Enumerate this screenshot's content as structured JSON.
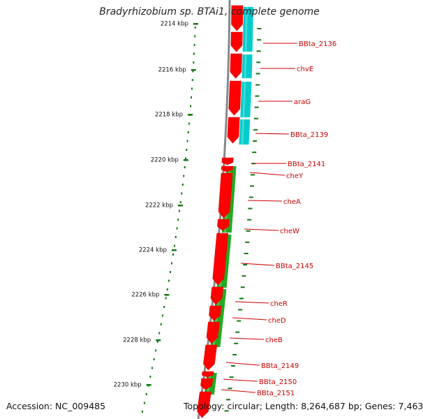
{
  "title": "Bradyrhizobium sp. BTAi1, complete genome",
  "footer": {
    "accession": "Accession: NC_009485",
    "info": "Topology: circular; Length: 8,264,687 bp; Genes: 7,463"
  },
  "ruler": {
    "unit": "kbp",
    "ticks": [
      "2214 kbp",
      "2216 kbp",
      "2218 kbp",
      "2220 kbp",
      "2222 kbp",
      "2224 kbp",
      "2226 kbp",
      "2228 kbp",
      "2230 kbp"
    ]
  },
  "genes": [
    {
      "label": "BBta_2136",
      "strand": "forward-strand"
    },
    {
      "label": "chvE",
      "strand": "forward-strand"
    },
    {
      "label": "araG",
      "strand": "forward-strand"
    },
    {
      "label": "BBta_2139",
      "strand": "forward-strand"
    },
    {
      "label": "BBta_2141",
      "strand": "forward-strand"
    },
    {
      "label": "cheY",
      "strand": "forward-strand"
    },
    {
      "label": "cheA",
      "strand": "forward-strand"
    },
    {
      "label": "cheW",
      "strand": "forward-strand"
    },
    {
      "label": "BBta_2145",
      "strand": "forward-strand"
    },
    {
      "label": "cheR",
      "strand": "forward-strand"
    },
    {
      "label": "cheD",
      "strand": "forward-strand"
    },
    {
      "label": "cheB",
      "strand": "forward-strand"
    },
    {
      "label": "BBta_2149",
      "strand": "forward-strand"
    },
    {
      "label": "BBta_2150",
      "strand": "forward-strand"
    },
    {
      "label": "BBta_2151",
      "strand": "forward-strand"
    }
  ],
  "colors": {
    "gene": "#ff0000",
    "operon-cyan": "#00cccc",
    "operon-green": "#22aa22",
    "label": "#cc0000",
    "tick": "#117711",
    "backbone": "#888888"
  }
}
